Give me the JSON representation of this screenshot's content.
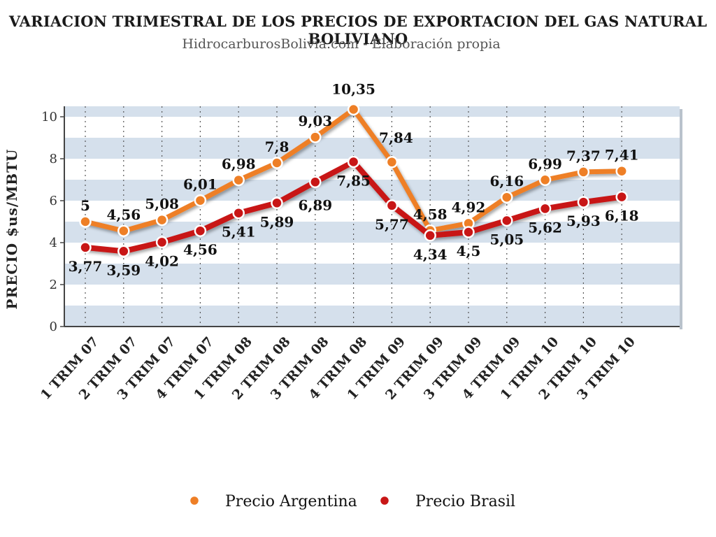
{
  "title": "VARIACION TRIMESTRAL DE LOS PRECIOS DE EXPORTACION DEL GAS NATURAL BOLIVIANO",
  "subtitle": "HidrocarburosBolivia.com - Elaboración propia",
  "chart_data": {
    "type": "line",
    "title": "VARIACION TRIMESTRAL DE LOS PRECIOS DE EXPORTACION DEL GAS NATURAL BOLIVIANO",
    "subtitle": "HidrocarburosBolivia.com - Elaboración propia",
    "ylabel": "PRECIO $us/MBTU",
    "xlabel": "",
    "ylim": [
      0,
      10.5
    ],
    "yticks": [
      0,
      2,
      4,
      6,
      8,
      10
    ],
    "grid": "horizontal bands",
    "legend": "bottom",
    "categories": [
      "1 TRIM 07",
      "2 TRIM 07",
      "3 TRIM 07",
      "4 TRIM 07",
      "1 TRIM 08",
      "2 TRIM 08",
      "3 TRIM 08",
      "4 TRIM 08",
      "1 TRIM 09",
      "2 TRIM 09",
      "3 TRIM 09",
      "4 TRIM 09",
      "1 TRIM 10",
      "2 TRIM 10",
      "3 TRIM 10"
    ],
    "series": [
      {
        "name": "Precio Argentina",
        "color": "#ee7f26",
        "values": [
          5,
          4.56,
          5.08,
          6.01,
          6.98,
          7.8,
          9.03,
          10.35,
          7.84,
          4.58,
          4.92,
          6.16,
          6.99,
          7.37,
          7.41
        ],
        "labels": [
          "5",
          "4,56",
          "5,08",
          "6,01",
          "6,98",
          "7,8",
          "9,03",
          "10,35",
          "7,84",
          "4,58",
          "4,92",
          "6,16",
          "6,99",
          "7,37",
          "7,41"
        ]
      },
      {
        "name": "Precio Brasil",
        "color": "#c81616",
        "values": [
          3.77,
          3.59,
          4.02,
          4.56,
          5.41,
          5.89,
          6.89,
          7.85,
          5.77,
          4.34,
          4.5,
          5.05,
          5.62,
          5.93,
          6.18
        ],
        "labels": [
          "3,77",
          "3,59",
          "4,02",
          "4,56",
          "5,41",
          "5,89",
          "6,89",
          "7,85",
          "5,77",
          "4,34",
          "4,5",
          "5,05",
          "5,62",
          "5,93",
          "6,18"
        ]
      }
    ]
  }
}
